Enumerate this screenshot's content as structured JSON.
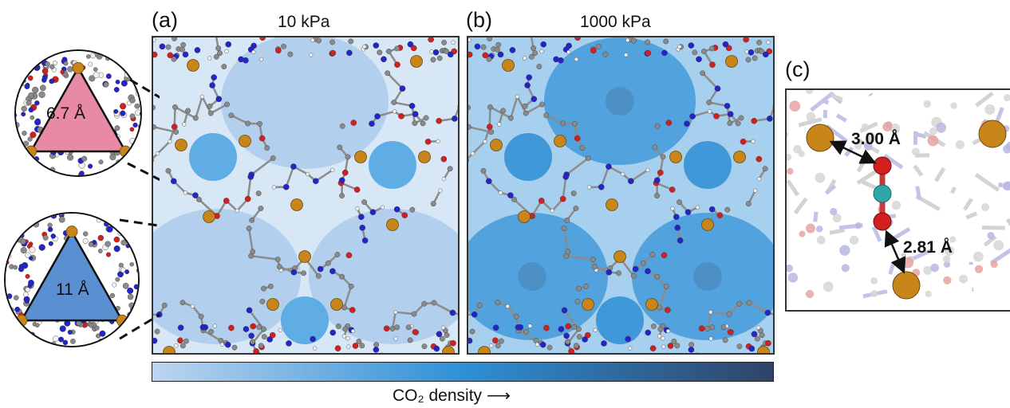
{
  "panels": {
    "a": {
      "label": "(a)",
      "title": "10 kPa"
    },
    "b": {
      "label": "(b)",
      "title": "1000 kPa"
    },
    "c": {
      "label": "(c)"
    }
  },
  "insets": {
    "small_pore": {
      "size_label": "6.7 Å",
      "color": "#e88aa3"
    },
    "large_pore": {
      "size_label": "11 Å",
      "color": "#5a8fd1"
    }
  },
  "distances": {
    "upper": "3.00 Å",
    "lower": "2.81 Å"
  },
  "colorbar": {
    "caption": "CO₂ density",
    "arrow": "⟶",
    "color_low": "#bcd5f0",
    "color_mid": "#2e90d6",
    "color_high": "#2f4468"
  },
  "atom_colors": {
    "metal": "#c8861a",
    "oxygen": "#d21f1f",
    "nitrogen": "#2424c8",
    "carbon": "#8a8a8a",
    "hydrogen": "#f2f2f2",
    "co2_carbon": "#2ea6a6"
  }
}
